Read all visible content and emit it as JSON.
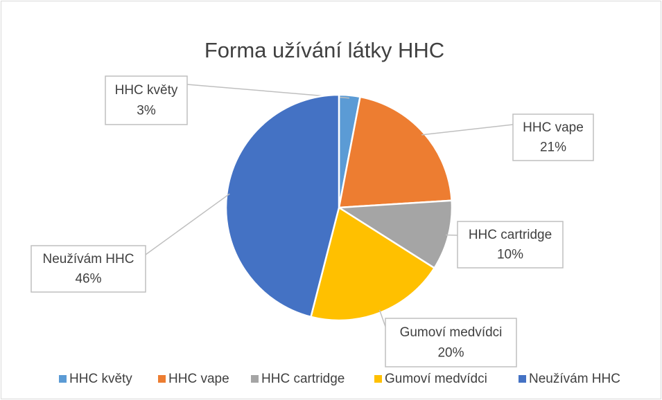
{
  "chart_data": {
    "type": "pie",
    "title": "Forma užívání látky HHC",
    "categories": [
      "HHC květy",
      "HHC vape",
      "HHC cartridge",
      "Gumoví medvídci",
      "Neužívám HHC"
    ],
    "values": [
      3,
      21,
      10,
      20,
      46
    ],
    "value_labels": [
      "3%",
      "21%",
      "10%",
      "20%",
      "46%"
    ],
    "colors": [
      "#5b9bd5",
      "#ed7d31",
      "#a5a5a5",
      "#ffc000",
      "#4472c4"
    ],
    "legend": "bottom"
  }
}
